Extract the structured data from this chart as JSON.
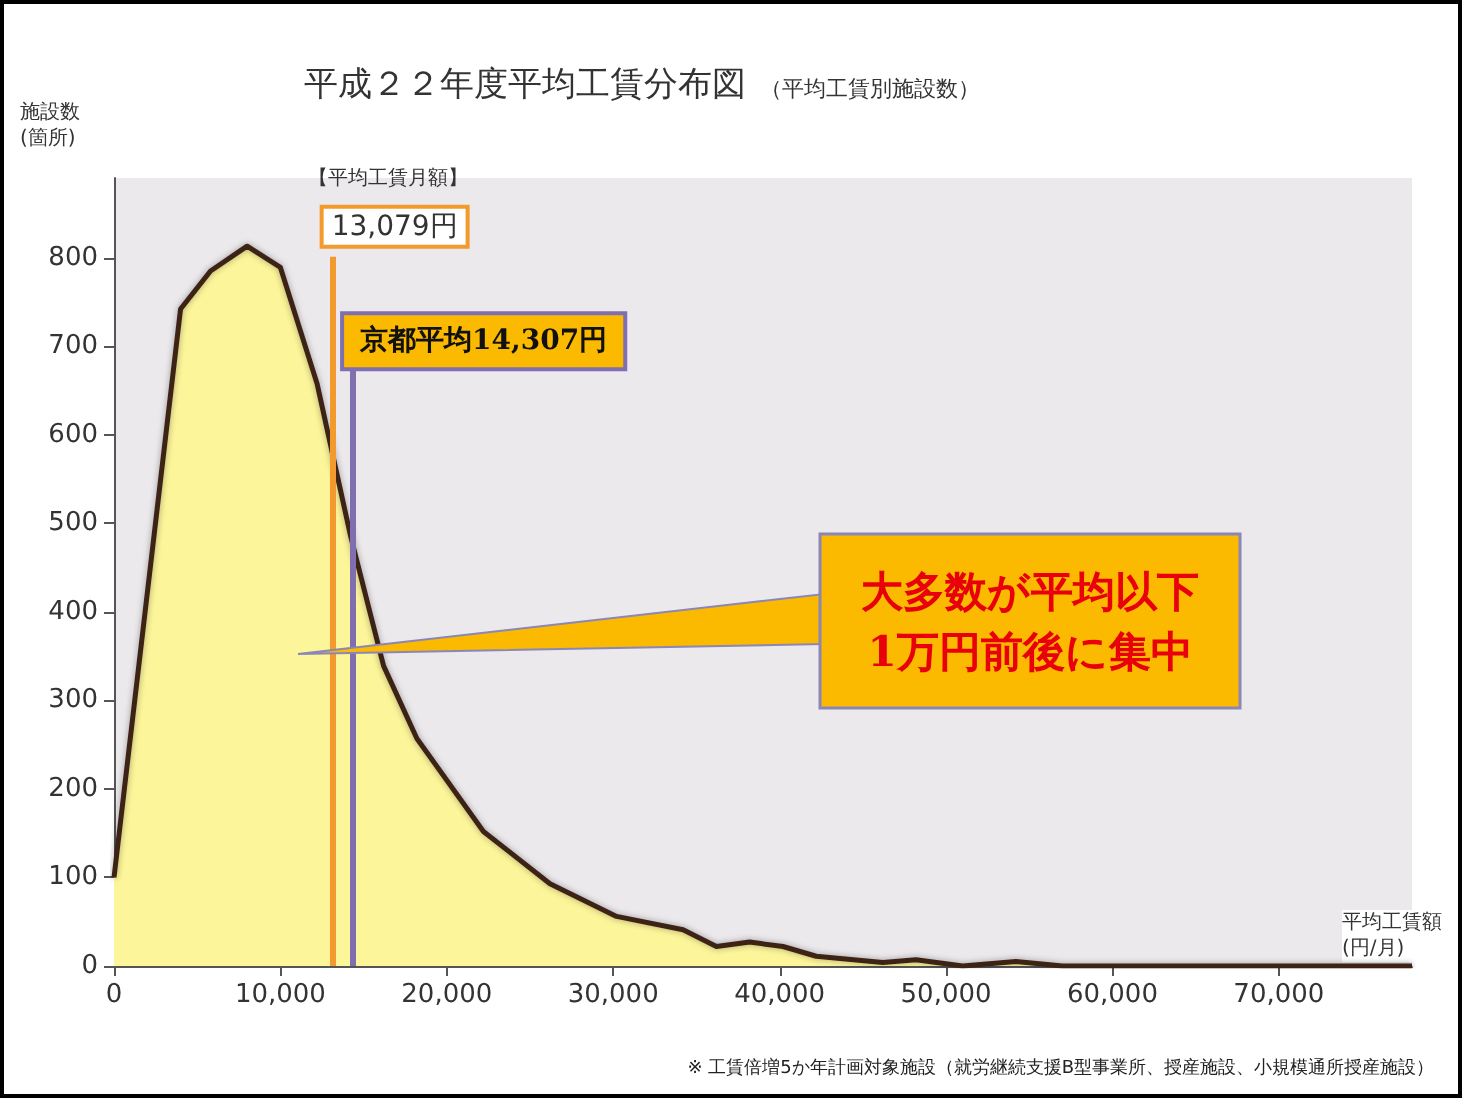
{
  "chart_data": {
    "type": "area",
    "title": "平成２２年度平均工賃分布図",
    "subtitle": "（平均工賃別施設数）",
    "xlabel": "平均工賃額\n(円/月)",
    "ylabel": "施設数\n(箇所)",
    "x": [
      0,
      4000,
      5800,
      8000,
      10000,
      12200,
      14200,
      15400,
      16200,
      18200,
      22200,
      26200,
      30200,
      34200,
      36200,
      38200,
      40200,
      42200,
      46200,
      48200,
      51000,
      54200,
      57000,
      65000,
      78000
    ],
    "series": [
      {
        "color": "#fdf59a",
        "values": [
          100,
          742,
          785,
          813,
          789,
          658,
          487,
          398,
          339,
          257,
          152,
          93,
          56,
          41,
          22,
          27,
          22,
          11,
          4,
          7,
          0,
          5,
          0,
          0,
          0
        ]
      }
    ],
    "xlim": [
      0,
      78000
    ],
    "ylim": [
      0,
      890
    ],
    "xticks": [
      0,
      {
        "value": 10000,
        "label": "10,000"
      },
      {
        "value": 20000,
        "label": "20,000"
      },
      {
        "value": 30000,
        "label": "30,000"
      },
      {
        "value": 40000,
        "label": "40,000"
      },
      {
        "value": 50000,
        "label": "50,000"
      },
      {
        "value": 60000,
        "label": "60,000"
      },
      {
        "value": 70000,
        "label": "70,000"
      }
    ],
    "yticks": [
      0,
      100,
      200,
      300,
      400,
      500,
      600,
      700,
      800
    ],
    "ref_lines": [
      {
        "axis": "x",
        "value": 13079,
        "label": "13,079円",
        "color": "#f39a2e"
      },
      {
        "axis": "x",
        "value": 14307,
        "label": "京都平均14,307円",
        "color": "#7f6fb0"
      }
    ],
    "annotations": [
      "【平均工賃月額】",
      "大多数が平均以下\n1万円前後に集中",
      "※ 工賃倍増5か年計画対象施設（就労継続支援B型事業所、授産施設、小規模通所授産施設）"
    ],
    "grid": false,
    "marker": "none",
    "line_style": "solid"
  }
}
